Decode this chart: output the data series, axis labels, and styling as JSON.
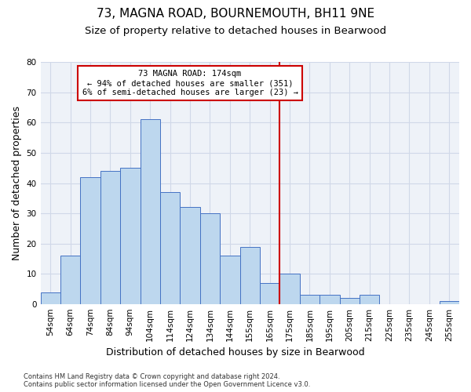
{
  "title": "73, MAGNA ROAD, BOURNEMOUTH, BH11 9NE",
  "subtitle": "Size of property relative to detached houses in Bearwood",
  "xlabel_bottom": "Distribution of detached houses by size in Bearwood",
  "ylabel": "Number of detached properties",
  "bar_labels": [
    "54sqm",
    "64sqm",
    "74sqm",
    "84sqm",
    "94sqm",
    "104sqm",
    "114sqm",
    "124sqm",
    "134sqm",
    "144sqm",
    "155sqm",
    "165sqm",
    "175sqm",
    "185sqm",
    "195sqm",
    "205sqm",
    "215sqm",
    "225sqm",
    "235sqm",
    "245sqm",
    "255sqm"
  ],
  "bar_values": [
    4,
    16,
    42,
    44,
    45,
    61,
    37,
    32,
    30,
    16,
    19,
    7,
    10,
    3,
    3,
    2,
    3,
    0,
    0,
    0,
    1
  ],
  "bar_color": "#bdd7ee",
  "bar_edge_color": "#4472c4",
  "grid_color": "#d0d8e8",
  "background_color": "#eef2f8",
  "vline_color": "#cc0000",
  "annotation_text": "73 MAGNA ROAD: 174sqm\n← 94% of detached houses are smaller (351)\n6% of semi-detached houses are larger (23) →",
  "annotation_box_color": "#cc0000",
  "ylim": [
    0,
    80
  ],
  "yticks": [
    0,
    10,
    20,
    30,
    40,
    50,
    60,
    70,
    80
  ],
  "footnote": "Contains HM Land Registry data © Crown copyright and database right 2024.\nContains public sector information licensed under the Open Government Licence v3.0.",
  "title_fontsize": 11,
  "subtitle_fontsize": 9.5,
  "tick_fontsize": 7.5,
  "ylabel_fontsize": 9,
  "xlabel_bottom_fontsize": 9
}
